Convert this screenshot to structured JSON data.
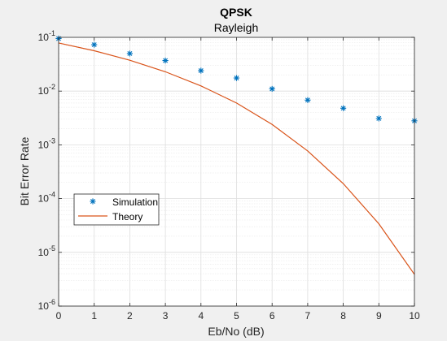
{
  "chart_data": {
    "type": "scatter",
    "title": "QPSK",
    "subtitle": "Rayleigh",
    "xlabel": "Eb/No (dB)",
    "ylabel": "Bit Error Rate",
    "xlim": [
      0,
      10
    ],
    "ylim": [
      1e-06,
      0.1
    ],
    "yscale": "log",
    "grid": true,
    "minor_grid": true,
    "legend_placement": "lower-left",
    "x_ticks": [
      "0",
      "1",
      "2",
      "3",
      "4",
      "5",
      "6",
      "7",
      "8",
      "9",
      "10"
    ],
    "y_ticks": [
      {
        "base": "10",
        "exp": "-6"
      },
      {
        "base": "10",
        "exp": "-5"
      },
      {
        "base": "10",
        "exp": "-4"
      },
      {
        "base": "10",
        "exp": "-3"
      },
      {
        "base": "10",
        "exp": "-2"
      },
      {
        "base": "10",
        "exp": "-1"
      }
    ],
    "series": [
      {
        "name": "Simulation",
        "style": "markers",
        "marker": "asterisk",
        "color": "#0072BD",
        "x": [
          0,
          1,
          2,
          3,
          4,
          5,
          6,
          7,
          8,
          9,
          10
        ],
        "values": [
          0.095,
          0.073,
          0.05,
          0.037,
          0.024,
          0.0175,
          0.011,
          0.0068,
          0.0048,
          0.0031,
          0.0028
        ]
      },
      {
        "name": "Theory",
        "style": "line",
        "color": "#D95319",
        "x": [
          0,
          1,
          2,
          3,
          4,
          5,
          6,
          7,
          8,
          9,
          10
        ],
        "values": [
          0.0786,
          0.0563,
          0.0375,
          0.0229,
          0.0125,
          0.006,
          0.0024,
          0.00077,
          0.00019,
          3.4e-05,
          3.9e-06
        ]
      }
    ]
  }
}
